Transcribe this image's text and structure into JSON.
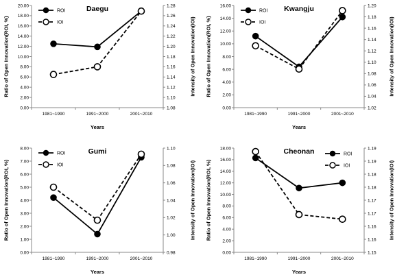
{
  "chart_data": [
    {
      "type": "line",
      "title": "Daegu",
      "xlabel": "Years",
      "ylabel": "Ratio of Open Innovation(ROI, %)",
      "y2label": "Intensity of Open Innovation(IOI)",
      "categories": [
        "1981~1990",
        "1991~2000",
        "2001~2010"
      ],
      "ylim": [
        0,
        20
      ],
      "yticks": [
        "0.00",
        "2.00",
        "4.00",
        "6.00",
        "8.00",
        "10.00",
        "12.00",
        "14.00",
        "16.00",
        "18.00",
        "20.00"
      ],
      "y2lim": [
        1.08,
        1.28
      ],
      "y2ticks": [
        "1.08",
        "1.10",
        "1.12",
        "1.14",
        "1.16",
        "1.18",
        "1.20",
        "1.22",
        "1.24",
        "1.26",
        "1.28"
      ],
      "legend_position": "top-left",
      "grid": false,
      "series": [
        {
          "name": "ROI",
          "axis": "left",
          "style": "solid",
          "marker": "filled-circle",
          "values": [
            12.5,
            11.9,
            18.9
          ]
        },
        {
          "name": "IOI",
          "axis": "right",
          "style": "dashed",
          "marker": "open-circle",
          "values": [
            1.145,
            1.16,
            1.269
          ]
        }
      ]
    },
    {
      "type": "line",
      "title": "Kwangju",
      "xlabel": "Years",
      "ylabel": "Ratio of Open Innovation(ROI, %)",
      "y2label": "Intensity of Open Innovation(IOI)",
      "categories": [
        "1981~1990",
        "1991~2000",
        "2001~2010"
      ],
      "ylim": [
        0,
        16
      ],
      "yticks": [
        "0.00",
        "2.00",
        "4.00",
        "6.00",
        "8.00",
        "10.00",
        "12.00",
        "14.00",
        "16.00"
      ],
      "y2lim": [
        1.02,
        1.2
      ],
      "y2ticks": [
        "1.02",
        "1.04",
        "1.06",
        "1.08",
        "1.10",
        "1.12",
        "1.14",
        "1.16",
        "1.18",
        "1.20"
      ],
      "legend_position": "top-left",
      "grid": false,
      "series": [
        {
          "name": "ROI",
          "axis": "left",
          "style": "solid",
          "marker": "filled-circle",
          "values": [
            11.2,
            6.4,
            14.2
          ]
        },
        {
          "name": "IOI",
          "axis": "right",
          "style": "dashed",
          "marker": "open-circle",
          "values": [
            1.129,
            1.088,
            1.191
          ]
        }
      ]
    },
    {
      "type": "line",
      "title": "Gumi",
      "xlabel": "Years",
      "ylabel": "Ratio of Open Innovation(ROI, %)",
      "y2label": "Intensity of Open Innovation(IOI)",
      "categories": [
        "1981~1990",
        "1991~2000",
        "2001~2010"
      ],
      "ylim": [
        0,
        8
      ],
      "yticks": [
        "0.00",
        "1.00",
        "2.00",
        "3.00",
        "4.00",
        "5.00",
        "6.00",
        "7.00",
        "8.00"
      ],
      "y2lim": [
        0.98,
        1.1
      ],
      "y2ticks": [
        "0.98",
        "1.00",
        "1.02",
        "1.04",
        "1.06",
        "1.08",
        "1.10"
      ],
      "legend_position": "top-left",
      "grid": false,
      "series": [
        {
          "name": "ROI",
          "axis": "left",
          "style": "solid",
          "marker": "filled-circle",
          "values": [
            4.2,
            1.4,
            7.3
          ]
        },
        {
          "name": "IOI",
          "axis": "right",
          "style": "dashed",
          "marker": "open-circle",
          "values": [
            1.055,
            1.017,
            1.093
          ]
        }
      ]
    },
    {
      "type": "line",
      "title": "Cheonan",
      "xlabel": "Years",
      "ylabel": "Ratio of Open Innovation(ROI, %)",
      "y2label": "Intensity of Open Innovation(IOI)",
      "categories": [
        "1981~1990",
        "1991~2000",
        "2001~2010"
      ],
      "ylim": [
        0,
        18
      ],
      "yticks": [
        "0.00",
        "2.00",
        "4.00",
        "6.00",
        "8.00",
        "10.00",
        "12.00",
        "14.00",
        "16.00",
        "18.00"
      ],
      "y2lim": [
        1.15,
        1.195
      ],
      "y2ticks": [
        "1.15",
        "1.16",
        "1.16",
        "1.17",
        "1.17",
        "1.18",
        "1.18",
        "1.19",
        "1.19"
      ],
      "legend_position": "top-right",
      "grid": false,
      "series": [
        {
          "name": "ROI",
          "axis": "left",
          "style": "solid",
          "marker": "filled-circle",
          "values": [
            16.3,
            11.1,
            12.0
          ]
        },
        {
          "name": "IOI",
          "axis": "right",
          "style": "dashed",
          "marker": "open-circle",
          "values": [
            1.1935,
            1.1663,
            1.1643
          ]
        }
      ]
    }
  ]
}
